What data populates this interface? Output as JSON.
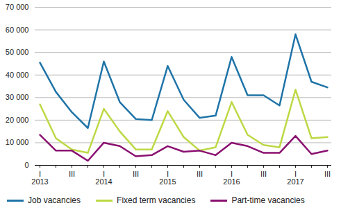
{
  "chart_data": {
    "type": "line",
    "categories": [
      "I\n2013",
      null,
      "III",
      null,
      "I\n2014",
      null,
      "III",
      null,
      "I\n2015",
      null,
      "III",
      null,
      "I\n2016",
      null,
      "III",
      null,
      "I\n2017",
      null,
      "III"
    ],
    "series": [
      {
        "name": "Job vacancies",
        "color": "#1f74a8",
        "values": [
          45500,
          32500,
          23500,
          16500,
          46000,
          28000,
          20500,
          20000,
          44000,
          29000,
          21000,
          22000,
          48000,
          31000,
          31000,
          26500,
          58000,
          37000,
          34500
        ]
      },
      {
        "name": "Fixed term vacancies",
        "color": "#bcd944",
        "values": [
          27000,
          12000,
          7000,
          5500,
          25000,
          15000,
          7000,
          7000,
          24000,
          12500,
          6500,
          8000,
          28000,
          13500,
          9000,
          8000,
          33500,
          12000,
          12500
        ]
      },
      {
        "name": "Part-time vacancies",
        "color": "#8a1070",
        "values": [
          13500,
          6500,
          6500,
          2000,
          10000,
          8500,
          4000,
          4500,
          8500,
          6000,
          6500,
          4500,
          10000,
          8500,
          5500,
          5500,
          13000,
          5000,
          6500
        ]
      }
    ],
    "ylim": [
      0,
      70000
    ],
    "yticks": [
      0,
      {
        "value": 10000,
        "label": "10 000"
      },
      {
        "value": 20000,
        "label": "20 000"
      },
      {
        "value": 30000,
        "label": "30 000"
      },
      {
        "value": 40000,
        "label": "40 000"
      },
      {
        "value": 50000,
        "label": "50 000"
      },
      {
        "value": 60000,
        "label": "60 000"
      },
      {
        "value": 70000,
        "label": "70 000"
      }
    ],
    "grid": true,
    "legend": "bottom"
  }
}
